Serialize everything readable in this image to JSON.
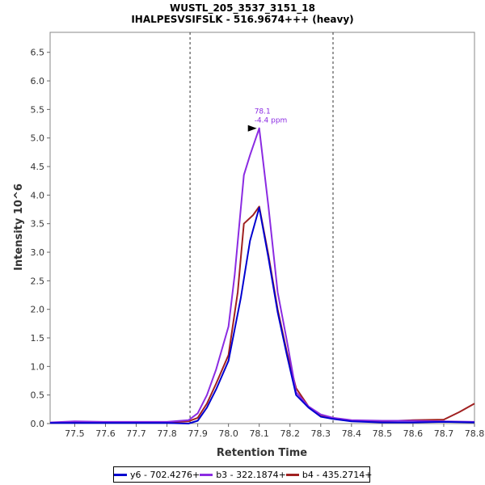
{
  "chart_data": {
    "type": "line",
    "title": "WUSTL_205_3537_3151_18",
    "subtitle": "IHALPESVSIFSLK - 516.9674+++ (heavy)",
    "xlabel": "Retention Time",
    "ylabel": "Intensity 10^6",
    "xlim": [
      77.42,
      78.8
    ],
    "ylim": [
      0,
      6.85
    ],
    "x_ticks": [
      "77.5",
      "77.6",
      "77.7",
      "77.8",
      "77.9",
      "78.0",
      "78.1",
      "78.2",
      "78.3",
      "78.4",
      "78.5",
      "78.6",
      "78.7",
      "78.8"
    ],
    "y_ticks": [
      "0.0",
      "0.5",
      "1.0",
      "1.5",
      "2.0",
      "2.5",
      "3.0",
      "3.5",
      "4.0",
      "4.5",
      "5.0",
      "5.5",
      "6.0",
      "6.5"
    ],
    "grid": false,
    "legend_position": "bottom",
    "boundaries": [
      77.875,
      78.34
    ],
    "annotation": {
      "x": 78.1,
      "y": 5.17,
      "label_rt": "78.1",
      "label_ppm": "-4.4 ppm"
    },
    "series": [
      {
        "name": "y6 - 702.4276+",
        "color": "#0000d0",
        "x": [
          77.42,
          77.5,
          77.6,
          77.7,
          77.8,
          77.87,
          77.9,
          77.93,
          77.96,
          78.0,
          78.04,
          78.07,
          78.1,
          78.13,
          78.16,
          78.19,
          78.22,
          78.26,
          78.3,
          78.34,
          78.4,
          78.5,
          78.6,
          78.7,
          78.8
        ],
        "values": [
          0.01,
          0.01,
          0.01,
          0.01,
          0.01,
          0.0,
          0.05,
          0.28,
          0.6,
          1.1,
          2.2,
          3.2,
          3.78,
          2.9,
          1.95,
          1.2,
          0.5,
          0.28,
          0.12,
          0.08,
          0.04,
          0.02,
          0.02,
          0.03,
          0.02
        ]
      },
      {
        "name": "b3 - 322.1874+",
        "color": "#8b2be2",
        "x": [
          77.42,
          77.5,
          77.6,
          77.7,
          77.8,
          77.87,
          77.9,
          77.93,
          77.96,
          78.0,
          78.02,
          78.05,
          78.07,
          78.1,
          78.13,
          78.16,
          78.19,
          78.22,
          78.26,
          78.3,
          78.34,
          78.4,
          78.5,
          78.6,
          78.7,
          78.8
        ],
        "values": [
          0.02,
          0.04,
          0.03,
          0.03,
          0.03,
          0.06,
          0.18,
          0.5,
          0.95,
          1.7,
          2.6,
          4.35,
          4.7,
          5.17,
          3.8,
          2.3,
          1.45,
          0.55,
          0.3,
          0.16,
          0.1,
          0.06,
          0.05,
          0.05,
          0.04,
          0.03
        ]
      },
      {
        "name": "b4 - 435.2714+",
        "color": "#a02020",
        "x": [
          77.42,
          77.5,
          77.6,
          77.7,
          77.8,
          77.87,
          77.9,
          77.93,
          77.96,
          78.0,
          78.03,
          78.05,
          78.08,
          78.1,
          78.13,
          78.16,
          78.19,
          78.22,
          78.26,
          78.3,
          78.34,
          78.4,
          78.5,
          78.6,
          78.7,
          78.75,
          78.8
        ],
        "values": [
          0.01,
          0.02,
          0.02,
          0.02,
          0.02,
          0.04,
          0.1,
          0.35,
          0.7,
          1.2,
          2.3,
          3.5,
          3.65,
          3.8,
          2.95,
          2.0,
          1.25,
          0.62,
          0.3,
          0.15,
          0.09,
          0.05,
          0.04,
          0.06,
          0.07,
          0.2,
          0.35
        ]
      }
    ]
  }
}
